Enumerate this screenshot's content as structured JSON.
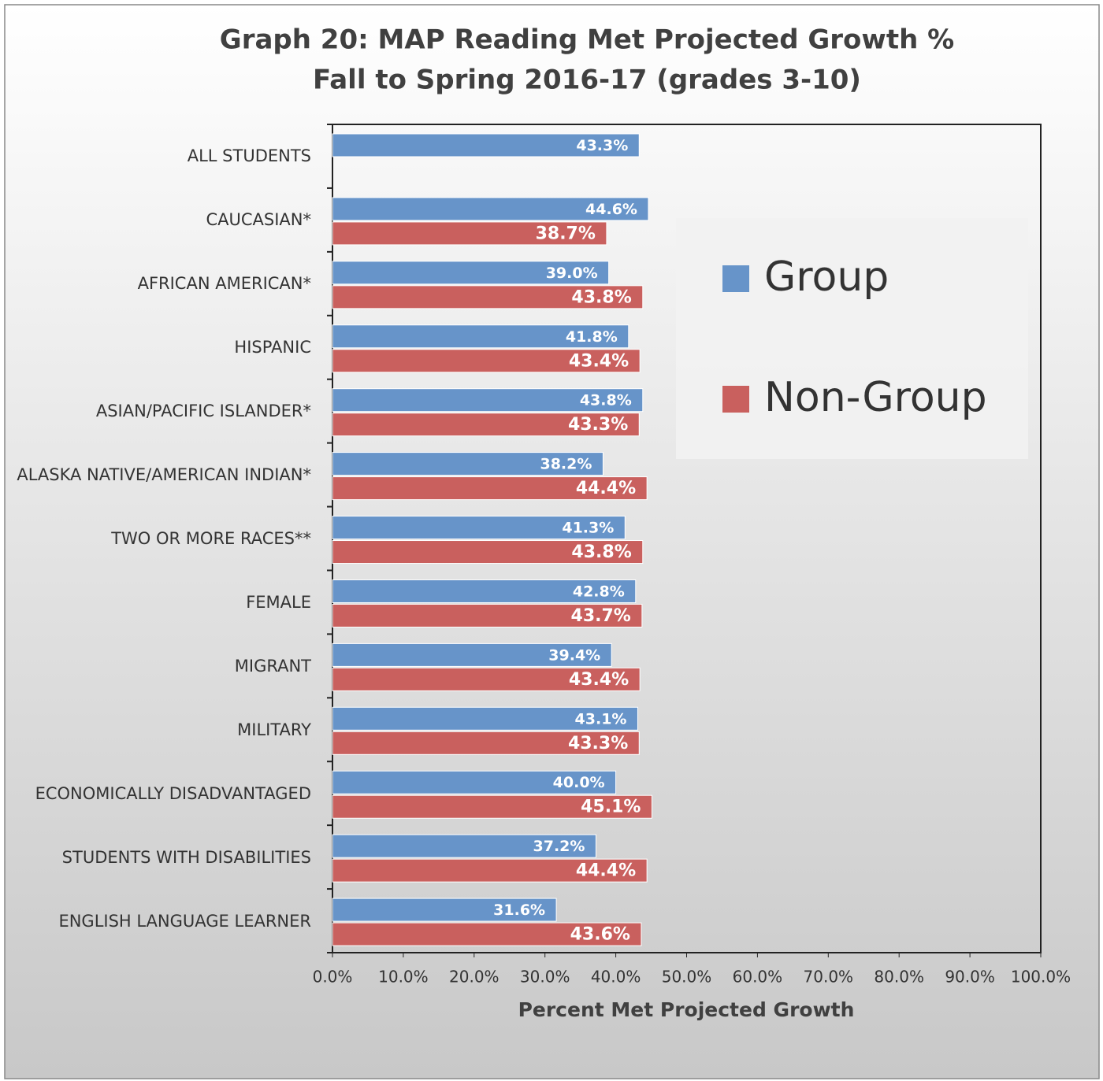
{
  "chart_data": {
    "type": "bar",
    "orientation": "horizontal",
    "title": "Graph 20: MAP Reading Met Projected Growth %",
    "subtitle": "Fall to Spring 2016-17 (grades 3-10)",
    "x_label": "Percent Met Projected Growth",
    "categories": [
      "ALL STUDENTS",
      "CAUCASIAN*",
      "AFRICAN AMERICAN*",
      "HISPANIC",
      "ASIAN/PACIFIC ISLANDER*",
      "ALASKA NATIVE/AMERICAN INDIAN*",
      "TWO OR MORE RACES**",
      "FEMALE",
      "MIGRANT",
      "MILITARY",
      "ECONOMICALLY DISADVANTAGED",
      "STUDENTS WITH DISABILITIES",
      "ENGLISH LANGUAGE LEARNER"
    ],
    "series": [
      {
        "name": "Group",
        "color": "#6794c9",
        "values": [
          43.3,
          44.6,
          39.0,
          41.8,
          43.8,
          38.2,
          41.3,
          42.8,
          39.4,
          43.1,
          40.0,
          37.2,
          31.6
        ],
        "value_labels": [
          "43.3%",
          "44.6%",
          "39.0%",
          "41.8%",
          "43.8%",
          "38.2%",
          "41.3%",
          "42.8%",
          "39.4%",
          "43.1%",
          "40.0%",
          "37.2%",
          "31.6%"
        ]
      },
      {
        "name": "Non-Group",
        "color": "#c9605e",
        "values": [
          null,
          38.7,
          43.8,
          43.4,
          43.3,
          44.4,
          43.8,
          43.7,
          43.4,
          43.3,
          45.1,
          44.4,
          43.6
        ],
        "value_labels": [
          null,
          "38.7%",
          "43.8%",
          "43.4%",
          "43.3%",
          "44.4%",
          "43.8%",
          "43.7%",
          "43.4%",
          "43.3%",
          "45.1%",
          "44.4%",
          "43.6%"
        ]
      }
    ],
    "xlim": [
      0,
      100
    ],
    "xticks": [
      {
        "value": 0,
        "label": "0.0%"
      },
      {
        "value": 10,
        "label": "10.0%"
      },
      {
        "value": 20,
        "label": "20.0%"
      },
      {
        "value": 30,
        "label": "30.0%"
      },
      {
        "value": 40,
        "label": "40.0%"
      },
      {
        "value": 50,
        "label": "50.0%"
      },
      {
        "value": 60,
        "label": "60.0%"
      },
      {
        "value": 70,
        "label": "70.0%"
      },
      {
        "value": 80,
        "label": "80.0%"
      },
      {
        "value": 90,
        "label": "90.0%"
      },
      {
        "value": 100,
        "label": "100.0%"
      }
    ],
    "legend": "right"
  }
}
